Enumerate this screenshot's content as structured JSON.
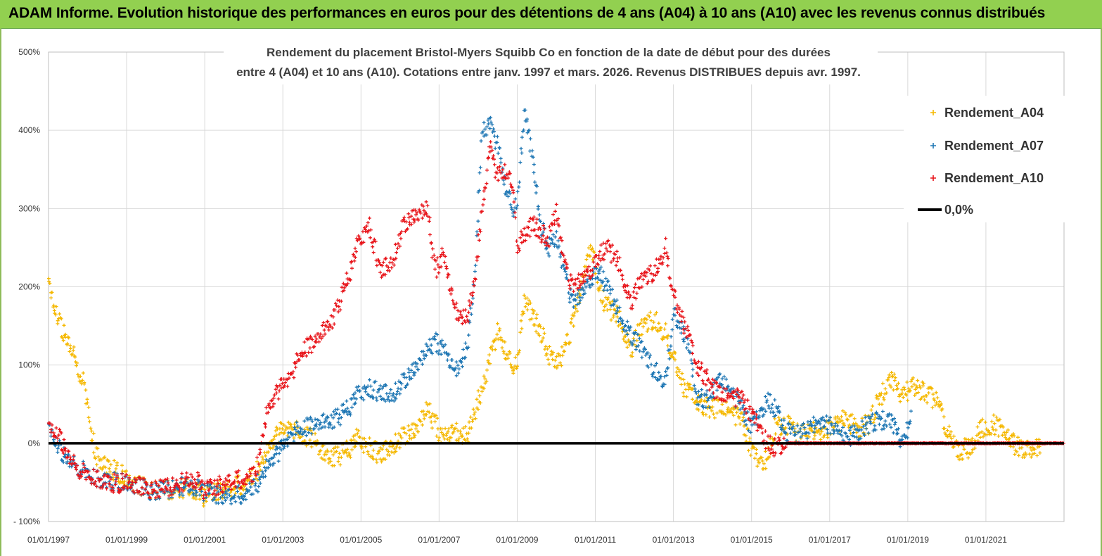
{
  "header": {
    "title": "ADAM Informe. Evolution historique des performances en euros pour des détentions de 4 ans (A04) à 10 ans (A10) avec les revenus connus distribués"
  },
  "chart_data": {
    "type": "scatter",
    "title_lines": [
      "Rendement du placement Bristol-Myers Squibb Co en fonction de la date de début pour des durées",
      "entre 4 (A04) et 10 ans (A10). Cotations entre janv. 1997 et mars. 2026. Revenus DISTRIBUES depuis avr. 1997."
    ],
    "x_start_year": 1997,
    "x_end_year": 2023,
    "x_tick_labels": [
      "01/01/1997",
      "01/01/1999",
      "01/01/2001",
      "01/01/2003",
      "01/01/2005",
      "01/01/2007",
      "01/01/2009",
      "01/01/2011",
      "01/01/2013",
      "01/01/2015",
      "01/01/2017",
      "01/01/2019",
      "01/01/2021"
    ],
    "y_ticks": [
      -100,
      0,
      100,
      200,
      300,
      400,
      500
    ],
    "y_tick_labels": [
      "- 100%",
      "0%",
      "100%",
      "200%",
      "300%",
      "400%",
      "500%"
    ],
    "ylim": [
      -100,
      500
    ],
    "grid": true,
    "legend_position": "right",
    "legend": [
      "Rendement_A04",
      "Rendement_A07",
      "Rendement_A10",
      "0,0%"
    ],
    "series": [
      {
        "name": "Rendement_A04",
        "color": "#f5b800",
        "x": [
          1997.0,
          1997.15,
          1997.3,
          1997.5,
          1997.7,
          1997.9,
          1998.0,
          1998.2,
          1998.5,
          1998.8,
          1999.0,
          1999.3,
          1999.6,
          2000.0,
          2000.4,
          2000.8,
          2001.0,
          2001.3,
          2001.6,
          2002.0,
          2002.3,
          2002.6,
          2002.9,
          2003.2,
          2003.5,
          2003.8,
          2004.0,
          2004.3,
          2004.6,
          2004.9,
          2005.2,
          2005.5,
          2005.8,
          2006.1,
          2006.4,
          2006.7,
          2006.9,
          2007.1,
          2007.4,
          2007.7,
          2007.9,
          2008.1,
          2008.3,
          2008.5,
          2008.7,
          2008.9,
          2009.0,
          2009.2,
          2009.4,
          2009.6,
          2009.8,
          2010.0,
          2010.2,
          2010.4,
          2010.6,
          2010.9,
          2011.1,
          2011.3,
          2011.6,
          2011.9,
          2012.2,
          2012.5,
          2012.8,
          2013.0,
          2013.3,
          2013.6,
          2013.9,
          2014.2,
          2014.5,
          2014.8,
          2015.0,
          2015.2,
          2015.4,
          2015.6,
          2015.9,
          2016.2,
          2016.5,
          2016.8,
          2017.1,
          2017.4,
          2017.7,
          2018.0,
          2018.3,
          2018.6,
          2018.9,
          2019.1,
          2019.4,
          2019.7,
          2020.0,
          2020.3,
          2020.6,
          2020.9,
          2021.2,
          2021.5,
          2021.8,
          2022.1,
          2022.4
        ],
        "y": [
          215,
          175,
          150,
          125,
          105,
          75,
          45,
          -15,
          -30,
          -38,
          -45,
          -55,
          -58,
          -60,
          -57,
          -62,
          -68,
          -60,
          -58,
          -52,
          -40,
          -10,
          15,
          20,
          10,
          8,
          -15,
          -18,
          -12,
          5,
          -5,
          -15,
          -5,
          10,
          15,
          45,
          25,
          5,
          15,
          10,
          35,
          70,
          110,
          140,
          120,
          100,
          105,
          190,
          160,
          145,
          115,
          105,
          115,
          150,
          195,
          255,
          195,
          175,
          160,
          120,
          150,
          160,
          140,
          110,
          70,
          55,
          45,
          45,
          40,
          25,
          -10,
          -25,
          -20,
          20,
          25,
          10,
          15,
          10,
          25,
          30,
          20,
          25,
          60,
          80,
          60,
          75,
          65,
          55,
          20,
          -10,
          -5,
          20,
          25,
          10,
          -5,
          -10,
          -5
        ]
      },
      {
        "name": "Rendement_A07",
        "color": "#1f77b4",
        "x": [
          1997.0,
          1997.15,
          1997.3,
          1997.5,
          1997.7,
          1997.9,
          1998.0,
          1998.2,
          1998.5,
          1998.8,
          1999.0,
          1999.3,
          1999.6,
          2000.0,
          2000.4,
          2000.8,
          2001.0,
          2001.3,
          2001.6,
          2002.0,
          2002.3,
          2002.6,
          2002.9,
          2003.2,
          2003.5,
          2003.8,
          2004.0,
          2004.3,
          2004.6,
          2004.9,
          2005.2,
          2005.5,
          2005.8,
          2006.1,
          2006.4,
          2006.7,
          2006.9,
          2007.1,
          2007.4,
          2007.7,
          2007.9,
          2008.1,
          2008.3,
          2008.5,
          2008.7,
          2008.9,
          2009.0,
          2009.2,
          2009.4,
          2009.6,
          2009.8,
          2010.0,
          2010.2,
          2010.4,
          2010.6,
          2010.9,
          2011.1,
          2011.3,
          2011.6,
          2011.9,
          2012.2,
          2012.5,
          2012.8,
          2013.0,
          2013.3,
          2013.6,
          2013.9,
          2014.2,
          2014.5,
          2014.8,
          2015.0,
          2015.2,
          2015.4,
          2015.6,
          2015.9,
          2016.2,
          2016.5,
          2016.8,
          2017.1,
          2017.4,
          2017.7,
          2018.0,
          2018.3,
          2018.6,
          2018.9,
          2019.1
        ],
        "y": [
          30,
          5,
          -10,
          -25,
          -30,
          -35,
          -40,
          -45,
          -48,
          -50,
          -50,
          -55,
          -60,
          -60,
          -55,
          -58,
          -62,
          -65,
          -68,
          -65,
          -55,
          -30,
          -10,
          10,
          20,
          25,
          25,
          30,
          40,
          60,
          70,
          65,
          60,
          80,
          95,
          120,
          130,
          120,
          90,
          120,
          200,
          400,
          410,
          380,
          330,
          300,
          310,
          430,
          360,
          280,
          250,
          265,
          220,
          180,
          190,
          210,
          220,
          200,
          165,
          140,
          120,
          95,
          80,
          165,
          140,
          60,
          55,
          80,
          65,
          40,
          20,
          35,
          55,
          45,
          15,
          10,
          20,
          25,
          20,
          5,
          15,
          25,
          30,
          25,
          0,
          40
        ]
      },
      {
        "name": "Rendement_A10",
        "color": "#e8141a",
        "x": [
          1997.0,
          1997.15,
          1997.3,
          1997.5,
          1997.7,
          1997.9,
          1998.0,
          1998.2,
          1998.5,
          1998.8,
          1999.0,
          1999.3,
          1999.6,
          2000.0,
          2000.4,
          2000.8,
          2001.0,
          2001.3,
          2001.6,
          2002.0,
          2002.3,
          2002.6,
          2002.9,
          2003.2,
          2003.5,
          2003.8,
          2004.0,
          2004.3,
          2004.6,
          2004.9,
          2005.2,
          2005.5,
          2005.8,
          2006.1,
          2006.4,
          2006.7,
          2006.9,
          2007.1,
          2007.4,
          2007.7,
          2007.9,
          2008.1,
          2008.3,
          2008.5,
          2008.7,
          2008.9,
          2009.0,
          2009.2,
          2009.4,
          2009.6,
          2009.8,
          2010.0,
          2010.2,
          2010.4,
          2010.6,
          2010.9,
          2011.1,
          2011.3,
          2011.6,
          2011.9,
          2012.2,
          2012.5,
          2012.8,
          2013.0,
          2013.3,
          2013.6,
          2013.9,
          2014.2,
          2014.5,
          2014.8,
          2015.0,
          2015.2,
          2015.4,
          2015.6,
          2015.9,
          2016.2,
          2016.5,
          2016.8,
          2017.1,
          2017.4,
          2017.7,
          2018.0,
          2018.3,
          2018.6,
          2018.9,
          2019.2,
          2019.5,
          2019.8,
          2020.1,
          2020.4,
          2020.7,
          2021.0,
          2021.3,
          2021.6,
          2021.9,
          2022.2,
          2022.5,
          2022.8,
          2023.0
        ],
        "y": [
          30,
          15,
          5,
          -20,
          -30,
          -38,
          -42,
          -45,
          -50,
          -52,
          -48,
          -55,
          -58,
          -58,
          -50,
          -48,
          -60,
          -55,
          -50,
          -45,
          -40,
          40,
          70,
          85,
          120,
          130,
          140,
          160,
          200,
          250,
          280,
          220,
          230,
          280,
          290,
          300,
          220,
          240,
          170,
          160,
          200,
          300,
          380,
          340,
          350,
          330,
          250,
          270,
          280,
          270,
          260,
          300,
          230,
          200,
          210,
          220,
          240,
          250,
          230,
          180,
          210,
          220,
          250,
          190,
          150,
          100,
          80,
          60,
          60,
          55,
          35,
          20,
          0,
          -5,
          0,
          0,
          0,
          0,
          0,
          0,
          0,
          0,
          0,
          0,
          0,
          0,
          0,
          0,
          0,
          0,
          0,
          0,
          0,
          0,
          0,
          0,
          0,
          0,
          0
        ]
      },
      {
        "name": "0,0%",
        "color": "#000000",
        "x": [
          1997.0,
          2023.0
        ],
        "y": [
          0,
          0
        ]
      }
    ]
  }
}
